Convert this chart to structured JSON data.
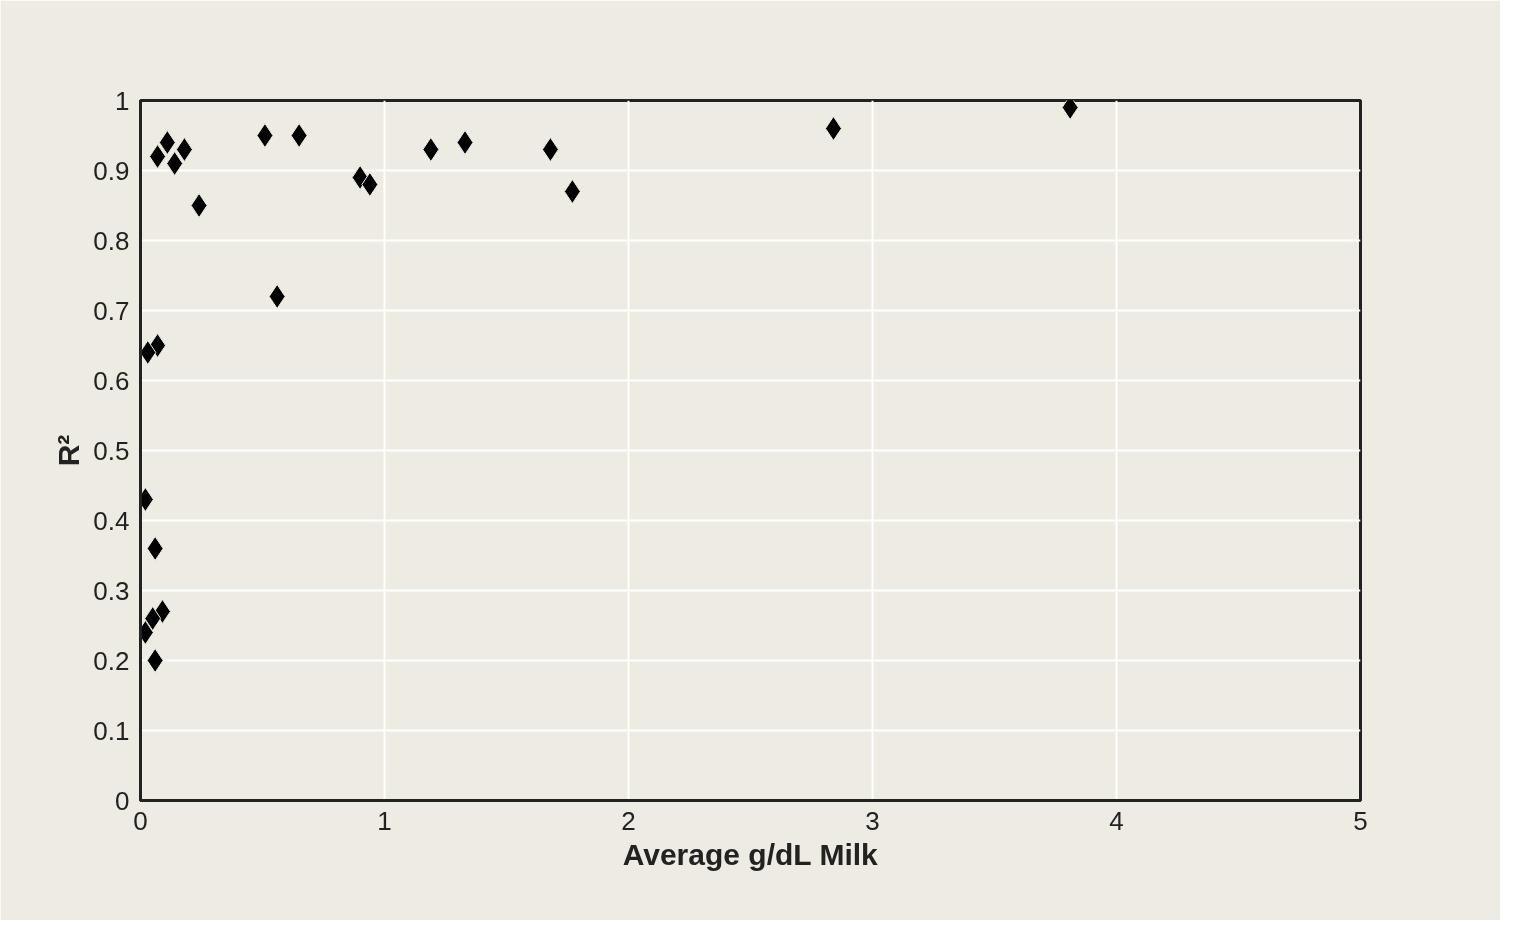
{
  "chart_data": {
    "type": "scatter",
    "xlabel": "Average g/dL Milk",
    "ylabel": "R²",
    "x": [
      0.07,
      0.11,
      0.14,
      0.18,
      0.24,
      0.07,
      0.03,
      0.02,
      0.06,
      0.09,
      0.05,
      0.02,
      0.06,
      0.51,
      0.65,
      0.56,
      0.9,
      0.94,
      1.19,
      1.33,
      1.68,
      1.77,
      2.84,
      3.81
    ],
    "values": [
      0.92,
      0.94,
      0.91,
      0.93,
      0.85,
      0.65,
      0.64,
      0.43,
      0.36,
      0.27,
      0.26,
      0.24,
      0.2,
      0.95,
      0.95,
      0.72,
      0.89,
      0.88,
      0.93,
      0.94,
      0.93,
      0.87,
      0.96,
      0.99
    ],
    "color": "#000000",
    "marker": "diamond",
    "xlim": [
      0,
      5
    ],
    "ylim": [
      0,
      1
    ],
    "xticks": [
      0,
      1,
      2,
      3,
      4,
      5
    ],
    "yticks": [
      0,
      0.1,
      0.2,
      0.3,
      0.4,
      0.5,
      0.6,
      0.7,
      0.8,
      0.9,
      1
    ],
    "grid": true
  }
}
